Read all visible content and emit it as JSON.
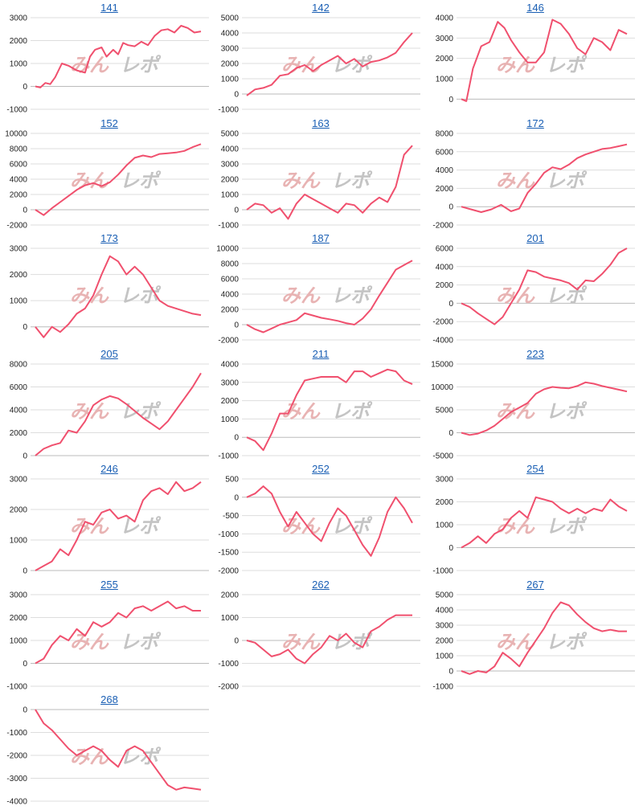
{
  "watermark": {
    "part1": "みん",
    "part2": "レポ"
  },
  "colors": {
    "line": "#f0506e",
    "grid": "#dddddd",
    "title": "#1a5fb4",
    "text": "#222222"
  },
  "chart_data": [
    {
      "title": "141",
      "type": "line",
      "yticks": [
        -1000,
        0,
        1000,
        2000,
        3000
      ],
      "ylim": [
        -1000,
        3000
      ],
      "x": [
        0,
        0.03,
        0.06,
        0.09,
        0.12,
        0.16,
        0.2,
        0.25,
        0.3,
        0.33,
        0.36,
        0.4,
        0.43,
        0.47,
        0.5,
        0.53,
        0.56,
        0.6,
        0.64,
        0.68,
        0.72,
        0.76,
        0.8,
        0.84,
        0.88,
        0.92,
        0.96,
        1.0
      ],
      "y": [
        0,
        -50,
        150,
        100,
        400,
        1000,
        900,
        700,
        600,
        1300,
        1600,
        1700,
        1300,
        1600,
        1400,
        1900,
        1800,
        1750,
        1950,
        1800,
        2200,
        2450,
        2500,
        2350,
        2650,
        2550,
        2350,
        2400
      ]
    },
    {
      "title": "142",
      "type": "line",
      "yticks": [
        -1000,
        0,
        1000,
        2000,
        3000,
        4000,
        5000
      ],
      "ylim": [
        -1000,
        5000
      ],
      "x": [
        0,
        0.05,
        0.1,
        0.15,
        0.2,
        0.25,
        0.3,
        0.35,
        0.4,
        0.45,
        0.5,
        0.55,
        0.6,
        0.65,
        0.7,
        0.75,
        0.8,
        0.85,
        0.9,
        0.95,
        1.0
      ],
      "y": [
        -100,
        300,
        400,
        600,
        1200,
        1300,
        1700,
        1900,
        1500,
        1900,
        2200,
        2500,
        2000,
        2300,
        1800,
        2100,
        2200,
        2400,
        2700,
        3400,
        4000
      ]
    },
    {
      "title": "146",
      "type": "line",
      "yticks": [
        0,
        1000,
        2000,
        3000,
        4000
      ],
      "ylim": [
        -500,
        4000
      ],
      "x": [
        0,
        0.03,
        0.07,
        0.12,
        0.17,
        0.22,
        0.26,
        0.3,
        0.35,
        0.4,
        0.45,
        0.5,
        0.55,
        0.6,
        0.65,
        0.7,
        0.75,
        0.8,
        0.85,
        0.9,
        0.95,
        1.0
      ],
      "y": [
        0,
        -100,
        1500,
        2600,
        2800,
        3800,
        3500,
        2900,
        2300,
        1800,
        1800,
        2300,
        3900,
        3700,
        3200,
        2500,
        2200,
        3000,
        2800,
        2400,
        3400,
        3200
      ]
    },
    {
      "title": "152",
      "type": "line",
      "yticks": [
        -2000,
        0,
        2000,
        4000,
        6000,
        8000,
        10000
      ],
      "ylim": [
        -2000,
        10000
      ],
      "x": [
        0,
        0.05,
        0.1,
        0.15,
        0.2,
        0.25,
        0.3,
        0.35,
        0.4,
        0.45,
        0.5,
        0.55,
        0.6,
        0.65,
        0.7,
        0.75,
        0.8,
        0.85,
        0.9,
        0.95,
        1.0
      ],
      "y": [
        0,
        -700,
        200,
        1000,
        1800,
        2600,
        3200,
        3500,
        3100,
        3600,
        4600,
        5800,
        6800,
        7100,
        6900,
        7300,
        7400,
        7500,
        7700,
        8200,
        8600
      ]
    },
    {
      "title": "163",
      "type": "line",
      "yticks": [
        -1000,
        0,
        1000,
        2000,
        3000,
        4000,
        5000
      ],
      "ylim": [
        -1000,
        5000
      ],
      "x": [
        0,
        0.05,
        0.1,
        0.15,
        0.2,
        0.25,
        0.3,
        0.35,
        0.4,
        0.45,
        0.5,
        0.55,
        0.6,
        0.65,
        0.7,
        0.75,
        0.8,
        0.85,
        0.9,
        0.95,
        1.0
      ],
      "y": [
        0,
        400,
        300,
        -200,
        100,
        -600,
        400,
        1000,
        700,
        400,
        100,
        -200,
        400,
        300,
        -200,
        400,
        800,
        500,
        1500,
        3600,
        4200
      ]
    },
    {
      "title": "172",
      "type": "line",
      "yticks": [
        -2000,
        0,
        2000,
        4000,
        6000,
        8000
      ],
      "ylim": [
        -2000,
        8000
      ],
      "x": [
        0,
        0.06,
        0.12,
        0.18,
        0.24,
        0.3,
        0.35,
        0.4,
        0.45,
        0.5,
        0.55,
        0.6,
        0.65,
        0.7,
        0.75,
        0.8,
        0.85,
        0.9,
        0.95,
        1.0
      ],
      "y": [
        0,
        -300,
        -600,
        -300,
        200,
        -500,
        -200,
        1500,
        2500,
        3700,
        4300,
        4100,
        4600,
        5300,
        5700,
        6000,
        6300,
        6400,
        6600,
        6800
      ]
    },
    {
      "title": "173",
      "type": "line",
      "yticks": [
        0,
        1000,
        2000,
        3000
      ],
      "ylim": [
        -500,
        3000
      ],
      "x": [
        0,
        0.05,
        0.1,
        0.15,
        0.2,
        0.25,
        0.3,
        0.35,
        0.4,
        0.45,
        0.5,
        0.55,
        0.6,
        0.65,
        0.7,
        0.75,
        0.8,
        0.85,
        0.9,
        0.95,
        1.0
      ],
      "y": [
        0,
        -400,
        0,
        -200,
        100,
        500,
        700,
        1200,
        2000,
        2700,
        2500,
        2000,
        2300,
        2000,
        1500,
        1000,
        800,
        700,
        600,
        500,
        450
      ]
    },
    {
      "title": "187",
      "type": "line",
      "yticks": [
        -2000,
        0,
        2000,
        4000,
        6000,
        8000,
        10000
      ],
      "ylim": [
        -2000,
        10000
      ],
      "x": [
        0,
        0.05,
        0.1,
        0.15,
        0.2,
        0.25,
        0.3,
        0.35,
        0.4,
        0.45,
        0.5,
        0.55,
        0.6,
        0.65,
        0.7,
        0.75,
        0.8,
        0.85,
        0.9,
        0.95,
        1.0
      ],
      "y": [
        0,
        -600,
        -1000,
        -500,
        0,
        300,
        600,
        1500,
        1200,
        900,
        700,
        500,
        200,
        0,
        800,
        2000,
        3800,
        5500,
        7200,
        7800,
        8400
      ]
    },
    {
      "title": "201",
      "type": "line",
      "yticks": [
        -4000,
        -2000,
        0,
        2000,
        4000,
        6000
      ],
      "ylim": [
        -4000,
        6000
      ],
      "x": [
        0,
        0.05,
        0.1,
        0.15,
        0.2,
        0.25,
        0.3,
        0.35,
        0.4,
        0.45,
        0.5,
        0.55,
        0.6,
        0.65,
        0.7,
        0.75,
        0.8,
        0.85,
        0.9,
        0.95,
        1.0
      ],
      "y": [
        0,
        -400,
        -1100,
        -1700,
        -2300,
        -1500,
        0,
        1500,
        3600,
        3400,
        2900,
        2700,
        2500,
        2200,
        1500,
        2500,
        2400,
        3200,
        4200,
        5500,
        6000
      ]
    },
    {
      "title": "205",
      "type": "line",
      "yticks": [
        0,
        2000,
        4000,
        6000,
        8000
      ],
      "ylim": [
        0,
        8000
      ],
      "x": [
        0,
        0.05,
        0.1,
        0.15,
        0.2,
        0.25,
        0.3,
        0.35,
        0.4,
        0.45,
        0.5,
        0.55,
        0.6,
        0.65,
        0.7,
        0.75,
        0.8,
        0.85,
        0.9,
        0.95,
        1.0
      ],
      "y": [
        0,
        600,
        900,
        1100,
        2200,
        2000,
        3000,
        4400,
        4900,
        5200,
        5000,
        4500,
        3900,
        3300,
        2800,
        2300,
        3000,
        4000,
        5000,
        6000,
        7200
      ]
    },
    {
      "title": "211",
      "type": "line",
      "yticks": [
        -1000,
        0,
        1000,
        2000,
        3000,
        4000
      ],
      "ylim": [
        -1000,
        4000
      ],
      "x": [
        0,
        0.05,
        0.1,
        0.15,
        0.2,
        0.25,
        0.3,
        0.35,
        0.4,
        0.45,
        0.5,
        0.55,
        0.6,
        0.65,
        0.7,
        0.75,
        0.8,
        0.85,
        0.9,
        0.95,
        1.0
      ],
      "y": [
        0,
        -200,
        -700,
        200,
        1300,
        1300,
        2300,
        3100,
        3200,
        3300,
        3300,
        3300,
        3000,
        3600,
        3600,
        3300,
        3500,
        3700,
        3600,
        3100,
        2900
      ]
    },
    {
      "title": "223",
      "type": "line",
      "yticks": [
        -5000,
        0,
        5000,
        10000,
        15000
      ],
      "ylim": [
        -5000,
        15000
      ],
      "x": [
        0,
        0.05,
        0.1,
        0.15,
        0.2,
        0.25,
        0.3,
        0.35,
        0.4,
        0.45,
        0.5,
        0.55,
        0.6,
        0.65,
        0.7,
        0.75,
        0.8,
        0.85,
        0.9,
        0.95,
        1.0
      ],
      "y": [
        0,
        -500,
        -200,
        500,
        1500,
        3000,
        4500,
        5500,
        6500,
        8500,
        9500,
        10000,
        9800,
        9700,
        10200,
        11000,
        10700,
        10200,
        9800,
        9400,
        9000
      ]
    },
    {
      "title": "246",
      "type": "line",
      "yticks": [
        0,
        1000,
        2000,
        3000
      ],
      "ylim": [
        0,
        3000
      ],
      "x": [
        0,
        0.05,
        0.1,
        0.15,
        0.2,
        0.25,
        0.3,
        0.35,
        0.4,
        0.45,
        0.5,
        0.55,
        0.6,
        0.65,
        0.7,
        0.75,
        0.8,
        0.85,
        0.9,
        0.95,
        1.0
      ],
      "y": [
        0,
        150,
        300,
        700,
        500,
        1000,
        1600,
        1500,
        1900,
        2000,
        1700,
        1800,
        1600,
        2300,
        2600,
        2700,
        2500,
        2900,
        2600,
        2700,
        2900
      ]
    },
    {
      "title": "252",
      "type": "line",
      "yticks": [
        -2000,
        -1500,
        -1000,
        -500,
        0,
        500
      ],
      "ylim": [
        -2000,
        500
      ],
      "x": [
        0,
        0.05,
        0.1,
        0.15,
        0.2,
        0.25,
        0.3,
        0.35,
        0.4,
        0.45,
        0.5,
        0.55,
        0.6,
        0.65,
        0.7,
        0.75,
        0.8,
        0.85,
        0.9,
        0.95,
        1.0
      ],
      "y": [
        0,
        100,
        300,
        100,
        -400,
        -800,
        -400,
        -700,
        -1000,
        -1200,
        -700,
        -300,
        -500,
        -900,
        -1300,
        -1600,
        -1100,
        -400,
        0,
        -300,
        -700
      ]
    },
    {
      "title": "254",
      "type": "line",
      "yticks": [
        -1000,
        0,
        1000,
        2000,
        3000
      ],
      "ylim": [
        -1000,
        3000
      ],
      "x": [
        0,
        0.05,
        0.1,
        0.15,
        0.2,
        0.25,
        0.3,
        0.35,
        0.4,
        0.45,
        0.5,
        0.55,
        0.6,
        0.65,
        0.7,
        0.75,
        0.8,
        0.85,
        0.9,
        0.95,
        1.0
      ],
      "y": [
        0,
        200,
        500,
        200,
        600,
        800,
        1300,
        1600,
        1300,
        2200,
        2100,
        2000,
        1700,
        1500,
        1700,
        1500,
        1700,
        1600,
        2100,
        1800,
        1600
      ]
    },
    {
      "title": "255",
      "type": "line",
      "yticks": [
        -1000,
        0,
        1000,
        2000,
        3000
      ],
      "ylim": [
        -1000,
        3000
      ],
      "x": [
        0,
        0.05,
        0.1,
        0.15,
        0.2,
        0.25,
        0.3,
        0.35,
        0.4,
        0.45,
        0.5,
        0.55,
        0.6,
        0.65,
        0.7,
        0.75,
        0.8,
        0.85,
        0.9,
        0.95,
        1.0
      ],
      "y": [
        0,
        200,
        800,
        1200,
        1000,
        1500,
        1200,
        1800,
        1600,
        1800,
        2200,
        2000,
        2400,
        2500,
        2300,
        2500,
        2700,
        2400,
        2500,
        2300,
        2300
      ]
    },
    {
      "title": "262",
      "type": "line",
      "yticks": [
        -2000,
        -1000,
        0,
        1000,
        2000
      ],
      "ylim": [
        -2000,
        2000
      ],
      "x": [
        0,
        0.05,
        0.1,
        0.15,
        0.2,
        0.25,
        0.3,
        0.35,
        0.4,
        0.45,
        0.5,
        0.55,
        0.6,
        0.65,
        0.7,
        0.75,
        0.8,
        0.85,
        0.9,
        0.95,
        1.0
      ],
      "y": [
        0,
        -100,
        -400,
        -700,
        -600,
        -400,
        -800,
        -1000,
        -600,
        -300,
        200,
        0,
        300,
        -100,
        -300,
        400,
        600,
        900,
        1100,
        1100,
        1100
      ]
    },
    {
      "title": "267",
      "type": "line",
      "yticks": [
        -1000,
        0,
        1000,
        2000,
        3000,
        4000,
        5000
      ],
      "ylim": [
        -1000,
        5000
      ],
      "x": [
        0,
        0.05,
        0.1,
        0.15,
        0.2,
        0.25,
        0.3,
        0.35,
        0.4,
        0.45,
        0.5,
        0.55,
        0.6,
        0.65,
        0.7,
        0.75,
        0.8,
        0.85,
        0.9,
        0.95,
        1.0
      ],
      "y": [
        0,
        -200,
        0,
        -100,
        300,
        1200,
        800,
        300,
        1200,
        2000,
        2800,
        3800,
        4500,
        4300,
        3700,
        3200,
        2800,
        2600,
        2700,
        2600,
        2600
      ]
    },
    {
      "title": "268",
      "type": "line",
      "yticks": [
        -4000,
        -3000,
        -2000,
        -1000,
        0
      ],
      "ylim": [
        -4000,
        0
      ],
      "x": [
        0,
        0.05,
        0.1,
        0.15,
        0.2,
        0.25,
        0.3,
        0.35,
        0.4,
        0.45,
        0.5,
        0.55,
        0.6,
        0.65,
        0.7,
        0.75,
        0.8,
        0.85,
        0.9,
        0.95,
        1.0
      ],
      "y": [
        0,
        -600,
        -900,
        -1300,
        -1700,
        -2000,
        -1800,
        -1600,
        -1800,
        -2200,
        -2500,
        -1800,
        -1600,
        -1800,
        -2300,
        -2800,
        -3300,
        -3500,
        -3400,
        -3450,
        -3500
      ]
    }
  ]
}
